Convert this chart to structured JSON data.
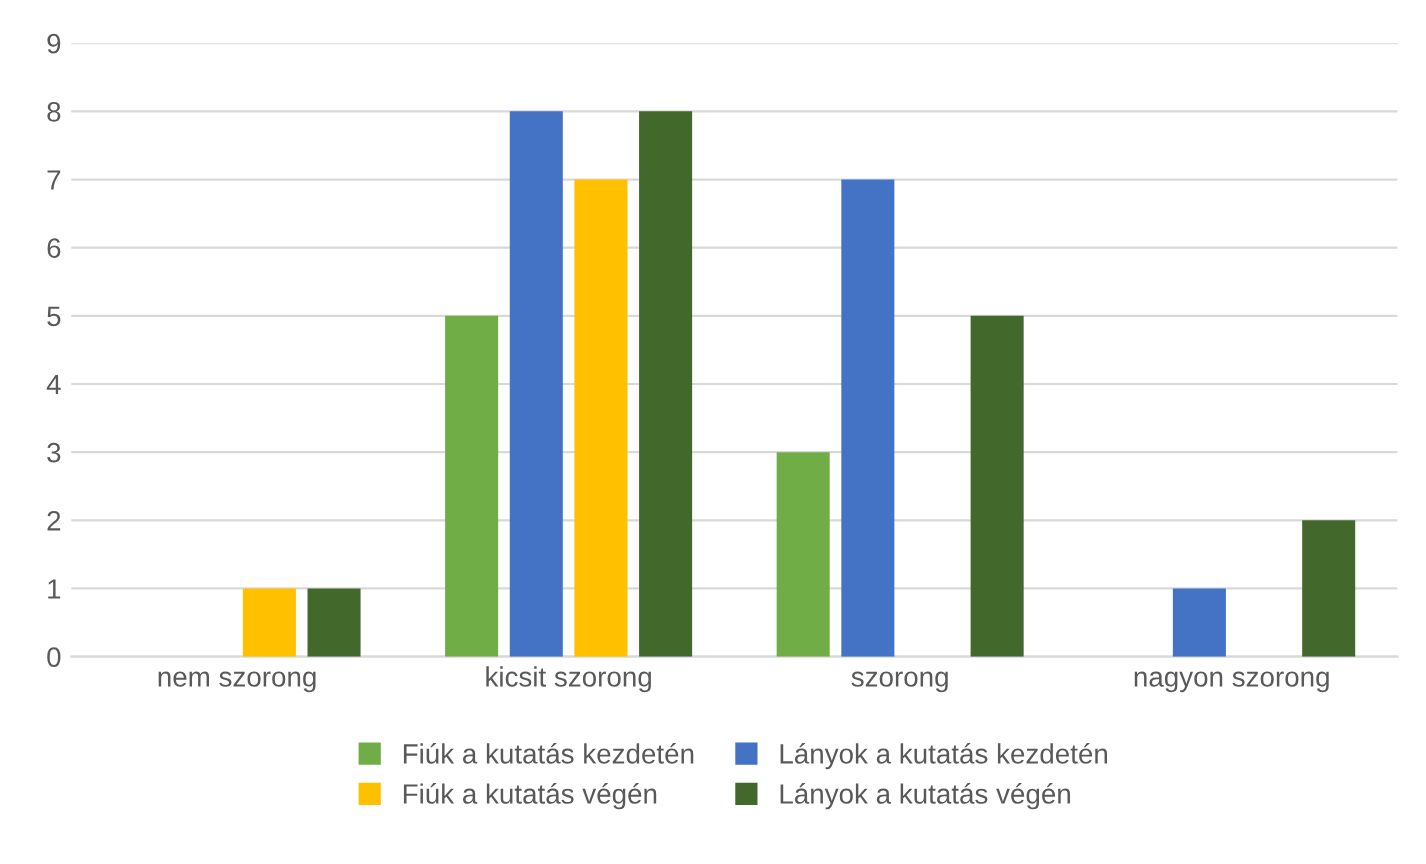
{
  "chart_data": {
    "type": "bar",
    "categories": [
      "nem szorong",
      "kicsit szorong",
      "szorong",
      "nagyon szorong"
    ],
    "series": [
      {
        "name": "Fiúk a kutatás kezdetén",
        "color": "#70ad47",
        "values": [
          0,
          5,
          3,
          0
        ]
      },
      {
        "name": "Lányok a kutatás kezdetén",
        "color": "#4472c4",
        "values": [
          0,
          8,
          7,
          1
        ]
      },
      {
        "name": "Fiúk a kutatás végén",
        "color": "#ffc000",
        "values": [
          1,
          7,
          0,
          0
        ]
      },
      {
        "name": "Lányok a kutatás végén",
        "color": "#43682b",
        "values": [
          1,
          8,
          5,
          2
        ]
      }
    ],
    "ylim": [
      0,
      9
    ],
    "yticks": [
      0,
      1,
      2,
      3,
      4,
      5,
      6,
      7,
      8,
      9
    ],
    "grid": "y",
    "legend": "bottom"
  }
}
